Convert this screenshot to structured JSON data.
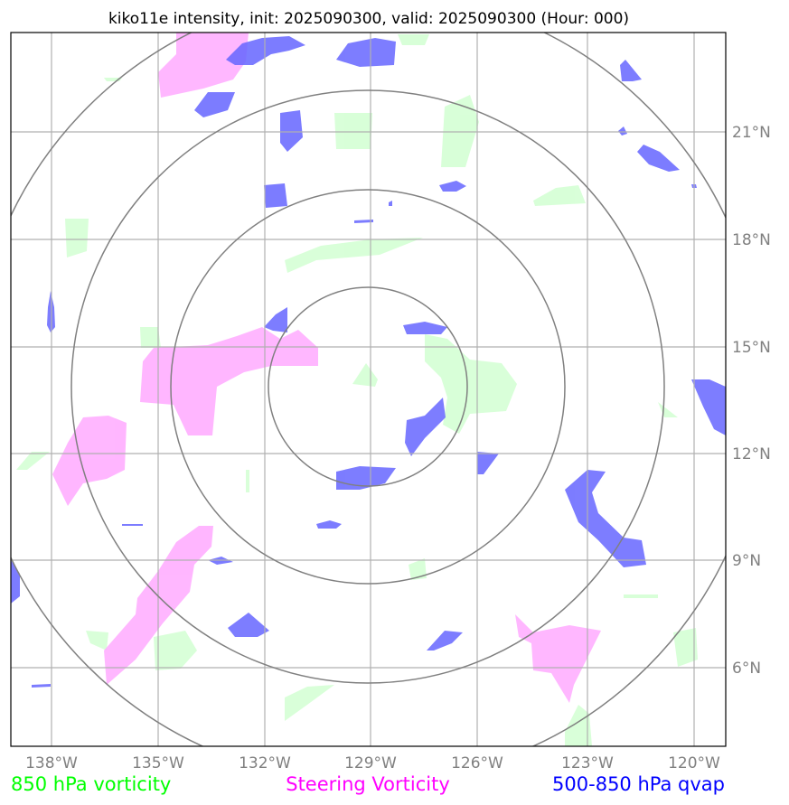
{
  "title": "kiko11e intensity, init: 2025090300, valid: 2025090300 (Hour: 000)",
  "lon_ticks": [
    "138°W",
    "135°W",
    "132°W",
    "129°W",
    "126°W",
    "123°W",
    "120°W"
  ],
  "lat_ticks": [
    "21°N",
    "18°N",
    "15°N",
    "12°N",
    "9°N",
    "6°N"
  ],
  "legend": {
    "vort850": "850 hPa vorticity",
    "steering": "Steering Vorticity",
    "qvap": "500-850 hPa qvap"
  },
  "colors": {
    "vort850": "#ccffcc",
    "steering": "#ffaaff",
    "qvap": "#6666ff",
    "legend_vort850": "#00ff00",
    "legend_steering": "#ff00ff",
    "legend_qvap": "#0000ff",
    "rings": "#808080",
    "grid": "#b0b0b0"
  },
  "center": {
    "lon": "129°W",
    "lat": "14°N"
  }
}
